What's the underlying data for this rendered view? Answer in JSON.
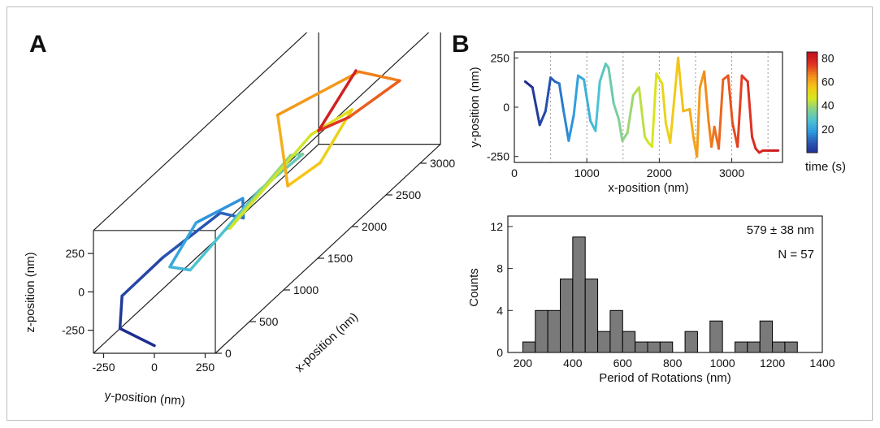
{
  "panels": {
    "a_label": "A",
    "b_label": "B"
  },
  "colors": {
    "frame": "#bdbdbd",
    "bars": "#7a7a7a",
    "bar_edge": "#000000",
    "colormap": [
      "#1e2c8e",
      "#2a57b5",
      "#2d9be0",
      "#4dc3d1",
      "#8ad28a",
      "#d8e81f",
      "#f5c518",
      "#f28a1b",
      "#e03222",
      "#c20f1d"
    ]
  },
  "chart_data": [
    {
      "type": "line",
      "panel": "A",
      "title": "",
      "xlabel": "x-position (nm)",
      "ylabel": "y-position (nm)",
      "zlabel": "z-position (nm)",
      "x_ticks": [
        "0",
        "500",
        "1000",
        "1500",
        "2000",
        "2500",
        "3000"
      ],
      "y_ticks": [
        "-250",
        "0",
        "250"
      ],
      "z_ticks": [
        "250",
        "0",
        "-250"
      ],
      "xlim": [
        0,
        3300
      ],
      "ylim": [
        -300,
        300
      ],
      "zlim": [
        -400,
        400
      ],
      "colormap": "jet (by time)",
      "description_values": "helical 3D trajectory advancing along x with ~6 rotations",
      "series": [
        {
          "x": [
            0,
            150,
            300,
            420,
            520,
            560
          ],
          "y": [
            0,
            -220,
            -260,
            -100,
            150,
            250
          ],
          "z": [
            -350,
            -300,
            -150,
            50,
            300,
            250
          ]
        },
        {
          "x": [
            560,
            700,
            850,
            1000,
            1120
          ],
          "y": [
            250,
            200,
            -80,
            -260,
            -200
          ],
          "z": [
            250,
            320,
            100,
            -250,
            -320
          ]
        },
        {
          "x": [
            1120,
            1250,
            1400,
            1550,
            1700
          ],
          "y": [
            -200,
            100,
            260,
            150,
            -150
          ],
          "z": [
            -320,
            150,
            320,
            250,
            -200
          ]
        },
        {
          "x": [
            1700,
            1850,
            2000,
            2150,
            2280
          ],
          "y": [
            -150,
            -250,
            100,
            250,
            50
          ],
          "z": [
            -200,
            -350,
            200,
            300,
            -100
          ]
        },
        {
          "x": [
            2280,
            2400,
            2550,
            2700,
            2850
          ],
          "y": [
            50,
            -150,
            -250,
            100,
            250
          ],
          "z": [
            -100,
            -300,
            100,
            320,
            200
          ]
        },
        {
          "x": [
            2850,
            3000,
            3150,
            3250
          ],
          "y": [
            250,
            -50,
            -250,
            -100
          ],
          "z": [
            200,
            -100,
            -250,
            100
          ]
        }
      ]
    },
    {
      "type": "line",
      "panel": "B",
      "title": "",
      "xlabel": "x-position (nm)",
      "ylabel": "y-position (nm)",
      "x_ticks": [
        "0",
        "1000",
        "2000",
        "3000"
      ],
      "y_ticks": [
        "250",
        "0",
        "-250"
      ],
      "xlim": [
        0,
        3700
      ],
      "ylim": [
        -280,
        280
      ],
      "colorbar": {
        "label": "time (s)",
        "ticks": [
          "80",
          "60",
          "40",
          "20"
        ],
        "range": [
          0,
          85
        ]
      },
      "vlines_x": [
        500,
        1000,
        1500,
        2000,
        2500,
        3000,
        3500
      ],
      "series": [
        {
          "name": "",
          "x": [
            150,
            250,
            350,
            430,
            500,
            560,
            620,
            680,
            750,
            820,
            880,
            960,
            1050,
            1120,
            1180,
            1260,
            1300,
            1370,
            1440,
            1490,
            1560,
            1640,
            1720,
            1800,
            1850,
            1900,
            1960,
            2040,
            2090,
            2150,
            2260,
            2330,
            2420,
            2470,
            2520,
            2560,
            2620,
            2680,
            2720,
            2760,
            2820,
            2880,
            2950,
            3010,
            3080,
            3140,
            3220,
            3280,
            3330,
            3380,
            3430,
            3500,
            3570,
            3640
          ],
          "y": [
            130,
            100,
            -90,
            -20,
            150,
            130,
            120,
            -20,
            -170,
            -40,
            160,
            140,
            -70,
            -120,
            130,
            220,
            200,
            20,
            -60,
            -170,
            -130,
            60,
            100,
            -150,
            -180,
            -200,
            170,
            120,
            -80,
            -180,
            250,
            -20,
            -10,
            -150,
            -250,
            100,
            180,
            -70,
            -200,
            -100,
            -210,
            140,
            160,
            -80,
            -200,
            160,
            130,
            -150,
            -210,
            -230,
            -220,
            -220,
            -220,
            -220
          ],
          "t": [
            0,
            3,
            6,
            8,
            10,
            12,
            14,
            16,
            18,
            20,
            22,
            24,
            26,
            28,
            30,
            32,
            33,
            35,
            37,
            38,
            40,
            42,
            44,
            46,
            47,
            48,
            50,
            52,
            53,
            55,
            57,
            59,
            61,
            62,
            63,
            64,
            66,
            67,
            68,
            69,
            70,
            71,
            72,
            73,
            74,
            75,
            76,
            77,
            78,
            79,
            80,
            81,
            82,
            83
          ]
        }
      ]
    },
    {
      "type": "bar",
      "panel": "B-hist",
      "title": "",
      "xlabel": "Period of Rotations (nm)",
      "ylabel": "Counts",
      "xlim": [
        140,
        1400
      ],
      "ylim": [
        0,
        13
      ],
      "x_ticks": [
        "200",
        "400",
        "600",
        "800",
        "1000",
        "1200",
        "1400"
      ],
      "y_ticks": [
        "0",
        "4",
        "8",
        "12"
      ],
      "bin_width": 50,
      "bin_starts": [
        200,
        250,
        300,
        350,
        400,
        450,
        500,
        550,
        600,
        650,
        700,
        750,
        800,
        850,
        900,
        950,
        1000,
        1050,
        1100,
        1150,
        1200,
        1250
      ],
      "values": [
        1,
        4,
        4,
        7,
        11,
        7,
        2,
        4,
        2,
        1,
        1,
        1,
        0,
        2,
        0,
        3,
        0,
        1,
        1,
        3,
        1,
        1
      ],
      "annotations": [
        "579 ± 38 nm",
        "N = 57"
      ]
    }
  ]
}
